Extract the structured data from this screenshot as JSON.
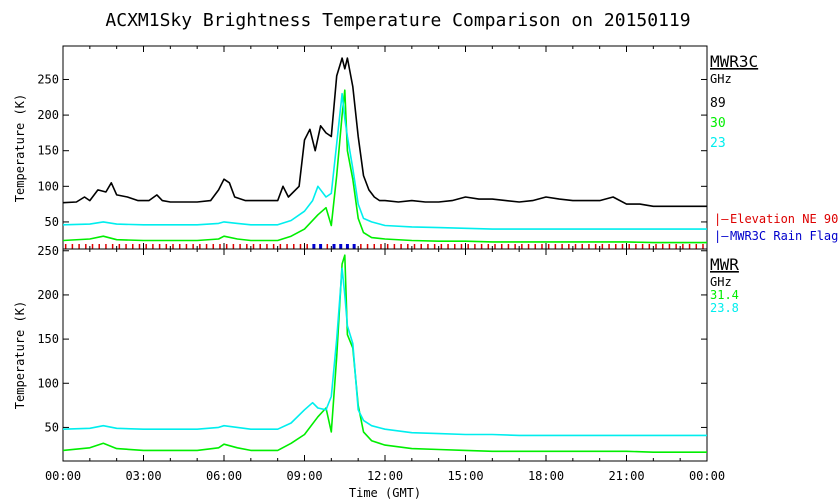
{
  "title": "ACXM1Sky Brightness Temperature Comparison on 20150119",
  "xlabel": "Time (GMT)",
  "x_ticks": [
    "00:00",
    "03:00",
    "06:00",
    "09:00",
    "12:00",
    "15:00",
    "18:00",
    "21:00",
    "00:00"
  ],
  "colors": {
    "black": "#000000",
    "green": "#00ee00",
    "cyan": "#00eeee",
    "red": "#dd0000",
    "blue": "#0000cc"
  },
  "chart_data": [
    {
      "type": "line",
      "panel": "top",
      "instrument": "MWR3C",
      "legend_title": "MWR3C",
      "legend_unit": "GHz",
      "ylabel": "Temperature (K)",
      "ylim": [
        12,
        297
      ],
      "yticks": [
        50,
        100,
        150,
        200,
        250
      ],
      "xlim_hours": [
        0,
        24
      ],
      "grid": false,
      "series": [
        {
          "name": "89",
          "color": "#000000",
          "x": [
            0,
            0.5,
            0.8,
            1.0,
            1.3,
            1.6,
            1.8,
            2.0,
            2.4,
            2.8,
            3.2,
            3.5,
            3.7,
            4.0,
            4.5,
            5.0,
            5.5,
            5.8,
            6.0,
            6.2,
            6.4,
            6.8,
            7.2,
            7.6,
            8.0,
            8.2,
            8.4,
            8.8,
            9.0,
            9.2,
            9.4,
            9.6,
            9.8,
            10.0,
            10.2,
            10.4,
            10.5,
            10.6,
            10.8,
            11.0,
            11.2,
            11.4,
            11.6,
            11.8,
            12.0,
            12.5,
            13.0,
            13.5,
            14.0,
            14.5,
            15.0,
            15.5,
            16.0,
            16.5,
            17.0,
            17.5,
            18.0,
            18.5,
            19.0,
            19.5,
            20.0,
            20.5,
            21.0,
            21.5,
            22.0,
            22.5,
            23.0,
            24.0
          ],
          "y": [
            77,
            78,
            85,
            80,
            95,
            92,
            105,
            88,
            85,
            80,
            80,
            88,
            80,
            78,
            78,
            78,
            80,
            95,
            110,
            105,
            85,
            80,
            80,
            80,
            80,
            100,
            85,
            100,
            165,
            180,
            150,
            185,
            175,
            170,
            255,
            280,
            265,
            280,
            240,
            170,
            115,
            95,
            85,
            80,
            80,
            78,
            80,
            78,
            78,
            80,
            85,
            82,
            82,
            80,
            78,
            80,
            85,
            82,
            80,
            80,
            80,
            85,
            75,
            75,
            72,
            72,
            72,
            72
          ]
        },
        {
          "name": "30",
          "color": "#00ee00",
          "x": [
            0,
            1.0,
            1.5,
            2.0,
            3.0,
            4.0,
            5.0,
            5.8,
            6.0,
            6.5,
            7.0,
            8.0,
            8.5,
            9.0,
            9.5,
            9.8,
            10.0,
            10.2,
            10.4,
            10.5,
            10.6,
            10.8,
            11.0,
            11.2,
            11.5,
            12.0,
            13.0,
            14.0,
            15.0,
            16.0,
            17.0,
            18.0,
            19.0,
            20.0,
            21.0,
            22.0,
            23.0,
            24.0
          ],
          "y": [
            24,
            26,
            30,
            25,
            24,
            24,
            24,
            26,
            30,
            26,
            24,
            24,
            30,
            40,
            60,
            70,
            45,
            115,
            200,
            235,
            150,
            110,
            55,
            35,
            28,
            26,
            24,
            23,
            23,
            22,
            22,
            22,
            22,
            22,
            22,
            21,
            21,
            21
          ]
        },
        {
          "name": "23",
          "color": "#00eeee",
          "x": [
            0,
            1.0,
            1.5,
            2.0,
            3.0,
            4.0,
            5.0,
            5.8,
            6.0,
            6.5,
            7.0,
            8.0,
            8.5,
            9.0,
            9.3,
            9.5,
            9.8,
            10.0,
            10.2,
            10.4,
            10.5,
            10.6,
            10.8,
            11.0,
            11.2,
            11.5,
            12.0,
            13.0,
            14.0,
            15.0,
            16.0,
            17.0,
            18.0,
            19.0,
            20.0,
            21.0,
            22.0,
            23.0,
            24.0
          ],
          "y": [
            46,
            47,
            50,
            47,
            46,
            46,
            46,
            48,
            50,
            48,
            46,
            46,
            52,
            65,
            80,
            100,
            85,
            90,
            160,
            230,
            195,
            170,
            125,
            75,
            55,
            50,
            45,
            43,
            42,
            41,
            40,
            40,
            40,
            40,
            40,
            40,
            40,
            40,
            40
          ]
        }
      ],
      "flags": [
        {
          "name": "Elevation NE 90",
          "color": "#dd0000"
        },
        {
          "name": "MWR3C Rain Flag",
          "color": "#0000cc",
          "hours": [
            9.3,
            9.5,
            10.0,
            10.2,
            10.4,
            10.6,
            10.9
          ]
        }
      ]
    },
    {
      "type": "line",
      "panel": "bottom",
      "instrument": "MWR",
      "legend_title": "MWR",
      "legend_unit": "GHz",
      "ylabel": "Temperature (K)",
      "ylim": [
        12,
        252
      ],
      "yticks": [
        50,
        100,
        150,
        200,
        250
      ],
      "xlim_hours": [
        0,
        24
      ],
      "grid": false,
      "series": [
        {
          "name": "31.4",
          "color": "#00ee00",
          "x": [
            0,
            1.0,
            1.5,
            2.0,
            3.0,
            4.0,
            5.0,
            5.8,
            6.0,
            6.5,
            7.0,
            8.0,
            8.5,
            9.0,
            9.5,
            9.8,
            10.0,
            10.2,
            10.4,
            10.5,
            10.6,
            10.8,
            11.0,
            11.2,
            11.5,
            12.0,
            13.0,
            14.0,
            15.0,
            16.0,
            17.0,
            18.0,
            19.0,
            20.0,
            21.0,
            22.0,
            23.0,
            24.0
          ],
          "y": [
            24,
            27,
            32,
            26,
            24,
            24,
            24,
            27,
            31,
            27,
            24,
            24,
            32,
            42,
            62,
            72,
            45,
            130,
            235,
            245,
            155,
            140,
            75,
            45,
            35,
            30,
            26,
            25,
            24,
            23,
            23,
            23,
            23,
            23,
            23,
            22,
            22,
            22
          ]
        },
        {
          "name": "23.8",
          "color": "#00eeee",
          "x": [
            0,
            1.0,
            1.5,
            2.0,
            3.0,
            4.0,
            5.0,
            5.8,
            6.0,
            6.5,
            7.0,
            8.0,
            8.5,
            9.0,
            9.3,
            9.5,
            9.8,
            10.0,
            10.2,
            10.4,
            10.5,
            10.6,
            10.8,
            11.0,
            11.2,
            11.5,
            12.0,
            13.0,
            14.0,
            15.0,
            16.0,
            17.0,
            18.0,
            19.0,
            20.0,
            21.0,
            22.0,
            23.0,
            24.0
          ],
          "y": [
            48,
            49,
            52,
            49,
            48,
            48,
            48,
            50,
            52,
            50,
            48,
            48,
            55,
            70,
            78,
            72,
            70,
            85,
            150,
            230,
            200,
            165,
            145,
            70,
            58,
            52,
            48,
            44,
            43,
            42,
            42,
            41,
            41,
            41,
            41,
            41,
            41,
            41,
            41
          ]
        }
      ]
    }
  ]
}
